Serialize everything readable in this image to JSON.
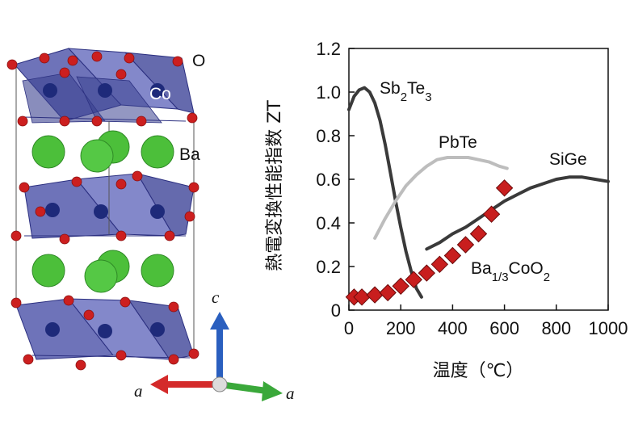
{
  "structure": {
    "atom_labels": {
      "oxygen": "O",
      "cobalt": "Co",
      "barium": "Ba"
    },
    "axis_labels": {
      "c": "c",
      "a_left": "a",
      "a_right": "a"
    },
    "colors": {
      "octahedron": "#4a50a8",
      "cobalt": "#1e2a7a",
      "oxygen": "#cc1f1f",
      "barium": "#4cbf3a",
      "axis_c": "#2a5fbf",
      "axis_a_left": "#d42a2a",
      "axis_a_right": "#3aa83a"
    }
  },
  "chart_data": {
    "type": "line",
    "ylabel": "熱電変換性能指数 ZT",
    "xlabel": "温度（℃）",
    "xlim": [
      0,
      1000
    ],
    "ylim": [
      0,
      1.2
    ],
    "xticks": [
      "0",
      "200",
      "400",
      "600",
      "800",
      "1000"
    ],
    "yticks": [
      "0",
      "0.2",
      "0.4",
      "0.6",
      "0.8",
      "1.0",
      "1.2"
    ],
    "series": [
      {
        "name": "Sb2Te3",
        "label": {
          "base": "Sb",
          "sub1": "2",
          "mid": "Te",
          "sub2": "3",
          "tail": ""
        },
        "color": "#3a3a3a",
        "x": [
          0,
          20,
          40,
          60,
          80,
          100,
          120,
          140,
          160,
          180,
          200,
          220,
          240,
          260,
          280
        ],
        "y": [
          0.92,
          0.98,
          1.01,
          1.02,
          1.0,
          0.95,
          0.87,
          0.76,
          0.63,
          0.5,
          0.38,
          0.27,
          0.18,
          0.1,
          0.06
        ]
      },
      {
        "name": "PbTe",
        "label": {
          "base": "PbTe"
        },
        "color": "#bdbdbd",
        "x": [
          100,
          140,
          180,
          220,
          260,
          300,
          340,
          380,
          420,
          460,
          500,
          540,
          580,
          610
        ],
        "y": [
          0.33,
          0.42,
          0.5,
          0.57,
          0.62,
          0.66,
          0.69,
          0.7,
          0.7,
          0.7,
          0.69,
          0.68,
          0.66,
          0.65
        ]
      },
      {
        "name": "SiGe",
        "label": {
          "base": "SiGe"
        },
        "color": "#3a3a3a",
        "x": [
          300,
          350,
          400,
          450,
          500,
          550,
          600,
          650,
          700,
          750,
          800,
          850,
          900,
          950,
          1000
        ],
        "y": [
          0.28,
          0.31,
          0.35,
          0.38,
          0.42,
          0.46,
          0.5,
          0.53,
          0.56,
          0.58,
          0.6,
          0.61,
          0.61,
          0.6,
          0.59
        ]
      },
      {
        "name": "Ba1/3CoO2",
        "label": {
          "base": "Ba",
          "sub1": "1/3",
          "mid": "CoO",
          "sub2": "2",
          "tail": ""
        },
        "color": "#c81e1e",
        "marker": "diamond",
        "x": [
          20,
          50,
          100,
          150,
          200,
          250,
          300,
          350,
          400,
          450,
          500,
          550,
          600
        ],
        "y": [
          0.06,
          0.06,
          0.07,
          0.08,
          0.11,
          0.14,
          0.17,
          0.21,
          0.25,
          0.3,
          0.35,
          0.44,
          0.56
        ]
      }
    ]
  }
}
